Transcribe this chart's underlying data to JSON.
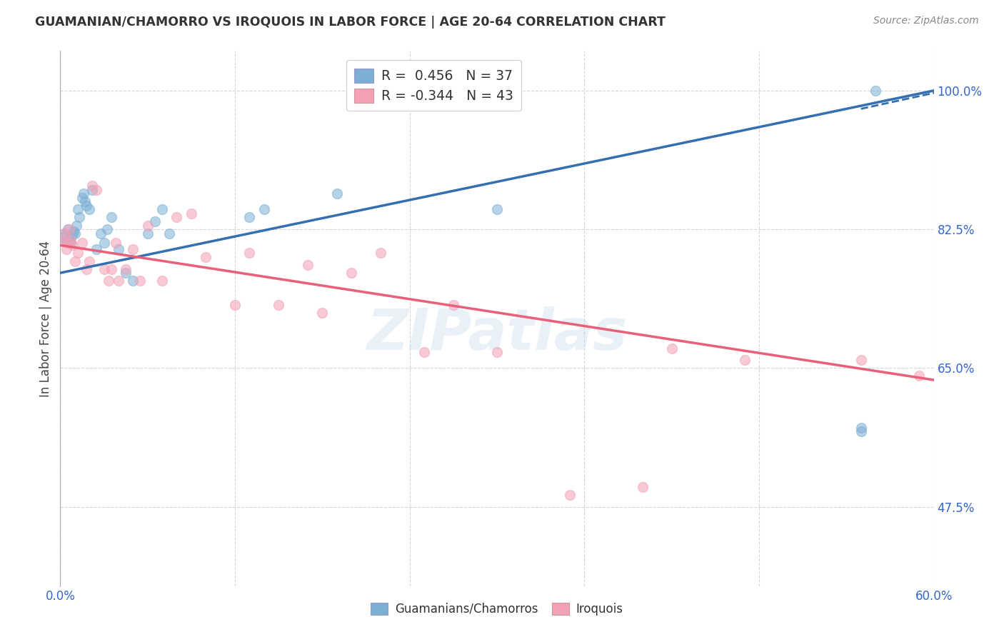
{
  "title": "GUAMANIAN/CHAMORRO VS IROQUOIS IN LABOR FORCE | AGE 20-64 CORRELATION CHART",
  "source": "Source: ZipAtlas.com",
  "ylabel": "In Labor Force | Age 20-64",
  "xlim": [
    0.0,
    0.6
  ],
  "ylim": [
    0.375,
    1.05
  ],
  "yticks": [
    0.475,
    0.65,
    0.825,
    1.0
  ],
  "ytick_labels": [
    "47.5%",
    "65.0%",
    "82.5%",
    "100.0%"
  ],
  "xticks": [
    0.0,
    0.12,
    0.24,
    0.36,
    0.48,
    0.6
  ],
  "xtick_labels": [
    "0.0%",
    "",
    "",
    "",
    "",
    "60.0%"
  ],
  "background_color": "#ffffff",
  "watermark": "ZIPatlas",
  "blue_R": 0.456,
  "blue_N": 37,
  "pink_R": -0.344,
  "pink_N": 43,
  "blue_color": "#7bafd4",
  "pink_color": "#f4a0b5",
  "blue_line_color": "#3470b0",
  "pink_line_color": "#e8607a",
  "legend_label_blue": "Guamanians/Chamorros",
  "legend_label_pink": "Iroquois",
  "blue_points_x": [
    0.002,
    0.003,
    0.004,
    0.005,
    0.006,
    0.007,
    0.008,
    0.009,
    0.01,
    0.011,
    0.012,
    0.013,
    0.015,
    0.016,
    0.017,
    0.018,
    0.02,
    0.022,
    0.025,
    0.028,
    0.03,
    0.032,
    0.035,
    0.04,
    0.045,
    0.05,
    0.06,
    0.065,
    0.07,
    0.075,
    0.13,
    0.14,
    0.19,
    0.3,
    0.55,
    0.55,
    0.56
  ],
  "blue_points_y": [
    0.815,
    0.82,
    0.81,
    0.825,
    0.812,
    0.808,
    0.818,
    0.822,
    0.82,
    0.83,
    0.85,
    0.84,
    0.865,
    0.87,
    0.86,
    0.855,
    0.85,
    0.875,
    0.8,
    0.82,
    0.808,
    0.825,
    0.84,
    0.8,
    0.77,
    0.76,
    0.82,
    0.835,
    0.85,
    0.82,
    0.84,
    0.85,
    0.87,
    0.85,
    0.575,
    0.57,
    1.0
  ],
  "pink_points_x": [
    0.002,
    0.003,
    0.004,
    0.005,
    0.006,
    0.007,
    0.008,
    0.01,
    0.012,
    0.015,
    0.018,
    0.02,
    0.022,
    0.025,
    0.03,
    0.033,
    0.035,
    0.038,
    0.04,
    0.045,
    0.05,
    0.055,
    0.06,
    0.07,
    0.08,
    0.09,
    0.1,
    0.12,
    0.13,
    0.15,
    0.17,
    0.18,
    0.2,
    0.22,
    0.25,
    0.27,
    0.3,
    0.35,
    0.4,
    0.42,
    0.47,
    0.55,
    0.59
  ],
  "pink_points_y": [
    0.81,
    0.82,
    0.8,
    0.808,
    0.825,
    0.812,
    0.805,
    0.785,
    0.795,
    0.808,
    0.775,
    0.785,
    0.88,
    0.875,
    0.775,
    0.76,
    0.775,
    0.808,
    0.76,
    0.775,
    0.8,
    0.76,
    0.83,
    0.76,
    0.84,
    0.845,
    0.79,
    0.73,
    0.795,
    0.73,
    0.78,
    0.72,
    0.77,
    0.795,
    0.67,
    0.73,
    0.67,
    0.49,
    0.5,
    0.675,
    0.66,
    0.66,
    0.64
  ],
  "dot_size": 100,
  "dot_alpha": 0.55,
  "grid_color": "#cccccc",
  "grid_style": "--",
  "grid_alpha": 0.8,
  "blue_line_x0": 0.0,
  "blue_line_y0": 0.77,
  "blue_line_x1": 0.6,
  "blue_line_y1": 1.0,
  "pink_line_x0": 0.0,
  "pink_line_y0": 0.805,
  "pink_line_x1": 0.6,
  "pink_line_y1": 0.635
}
